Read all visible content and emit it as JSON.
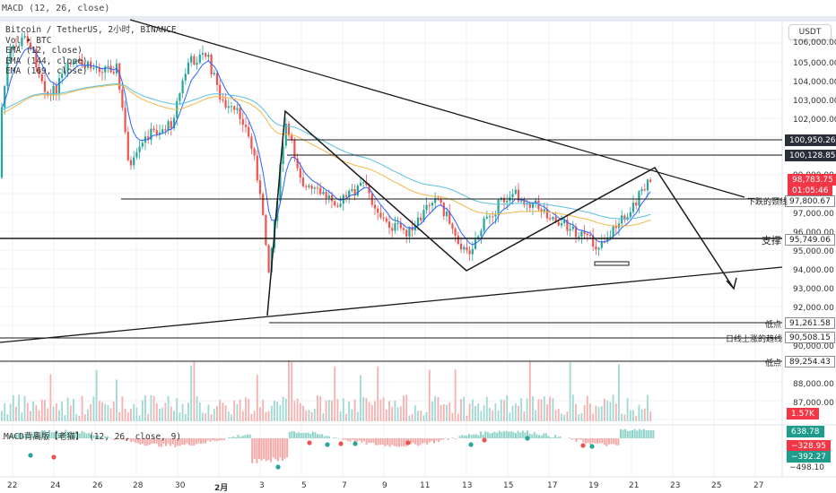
{
  "header": {
    "indicator_title": "MACD (12, 26, close)",
    "legend": [
      "Bitcoin / TetherUS, 2小时, BINANCE",
      "Vol • BTC",
      "EMA (12, close)",
      "EMA (144, close)",
      "EMA (169, close)"
    ],
    "currency_button": "USDT"
  },
  "price_axis": {
    "ticks": [
      "106,000.00",
      "105,000.00",
      "104,000.00",
      "103,000.00",
      "102,000.00",
      "99,000.00",
      "97,000.00",
      "96,000.00",
      "95,000.00",
      "94,000.00",
      "93,000.00",
      "92,000.00",
      "90,000.00",
      "88,000.00",
      "87,000.00",
      "−498.10"
    ]
  },
  "price_tags": [
    {
      "value": "100,950.26",
      "style": "dark",
      "note": ""
    },
    {
      "value": "100,128.85",
      "style": "dark",
      "note": ""
    },
    {
      "value": "98,783.75",
      "style": "red",
      "note": ""
    },
    {
      "value": "01:05:46",
      "style": "red",
      "note": ""
    },
    {
      "value": "97,800.67",
      "style": "plain",
      "note": "下跌的颈线"
    },
    {
      "value": "95,749.06",
      "style": "plain",
      "note": "支撑"
    },
    {
      "value": "91,261.58",
      "style": "plain",
      "note": "低点"
    },
    {
      "value": "90,508.15",
      "style": "plain",
      "note": "日线上涨的趋线"
    },
    {
      "value": "89,254.43",
      "style": "plain",
      "note": "低点"
    },
    {
      "value": "1.57K",
      "style": "red",
      "note": ""
    },
    {
      "value": "638.78",
      "style": "green",
      "note": ""
    },
    {
      "value": "−328.95",
      "style": "red",
      "note": ""
    },
    {
      "value": "−392.27",
      "style": "green",
      "note": ""
    }
  ],
  "macd_panel": {
    "legend": "MACD背离版【老猫】 (12, 26, close, 9)"
  },
  "time_axis": {
    "labels": [
      "22",
      "24",
      "26",
      "28",
      "30",
      "2月",
      "3",
      "5",
      "7",
      "9",
      "11",
      "13",
      "15",
      "17",
      "19",
      "21",
      "23",
      "25",
      "27"
    ]
  },
  "colors": {
    "up": "#26a69a",
    "down": "#ef5350",
    "ema_fast": "#2962ff",
    "ema_mid": "#f2b84b",
    "ema_slow": "#5bc0de",
    "drawing": "#1a1a1a"
  }
}
